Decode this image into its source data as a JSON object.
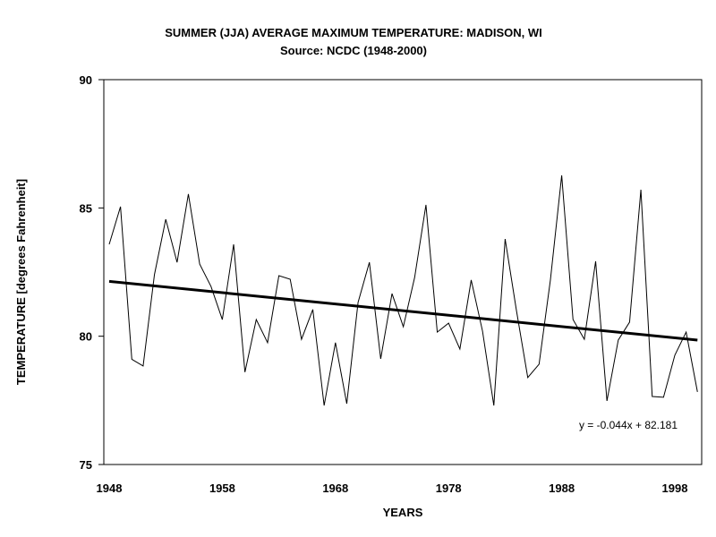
{
  "chart_data": {
    "type": "line",
    "title": "SUMMER (JJA) AVERAGE MAXIMUM TEMPERATURE: MADISON, WI",
    "subtitle": "Source: NCDC (1948-2000)",
    "xlabel": "YEARS",
    "ylabel": "TEMPERATURE [degrees Fahrenheit]",
    "ylim": [
      75,
      90
    ],
    "xlim": [
      1948,
      2000
    ],
    "yticks": [
      "75",
      "80",
      "85",
      "90"
    ],
    "xticks": [
      "1948",
      "1958",
      "1968",
      "1978",
      "1988",
      "1998"
    ],
    "grid": false,
    "legend": "none",
    "x": [
      1948,
      1949,
      1950,
      1951,
      1952,
      1953,
      1954,
      1955,
      1956,
      1957,
      1958,
      1959,
      1960,
      1961,
      1962,
      1963,
      1964,
      1965,
      1966,
      1967,
      1968,
      1969,
      1970,
      1971,
      1972,
      1973,
      1974,
      1975,
      1976,
      1977,
      1978,
      1979,
      1980,
      1981,
      1982,
      1983,
      1984,
      1985,
      1986,
      1987,
      1988,
      1989,
      1990,
      1991,
      1992,
      1993,
      1994,
      1995,
      1996,
      1997,
      1998,
      1999,
      2000
    ],
    "values": [
      83.58,
      85.05,
      79.1,
      78.84,
      82.4,
      84.56,
      82.88,
      85.54,
      82.81,
      81.94,
      80.65,
      83.58,
      78.6,
      80.65,
      79.75,
      82.36,
      82.22,
      79.88,
      81.04,
      77.3,
      79.75,
      77.37,
      81.32,
      82.88,
      79.12,
      81.66,
      80.37,
      82.29,
      85.12,
      80.16,
      80.51,
      79.5,
      82.19,
      80.2,
      77.3,
      83.79,
      81.0,
      78.39,
      78.91,
      82.19,
      86.27,
      80.65,
      79.88,
      82.92,
      77.48,
      79.85,
      80.55,
      85.71,
      77.65,
      77.62,
      79.26,
      80.16,
      77.83
    ],
    "trendline": {
      "slope": -0.044,
      "intercept": 82.181,
      "equation": "y = -0.044x + 82.181"
    },
    "colors": {
      "series": "#000000",
      "trend": "#000000"
    }
  }
}
